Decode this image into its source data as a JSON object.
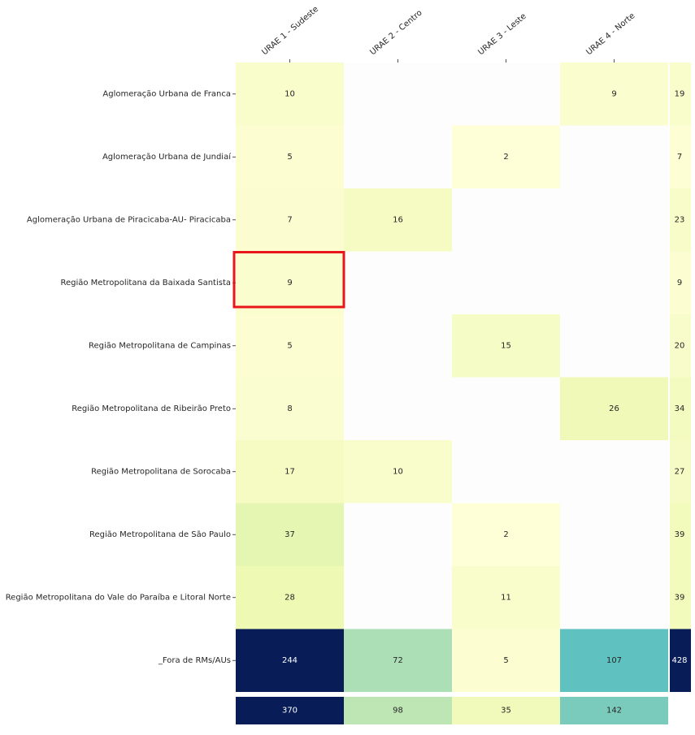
{
  "chart_data": {
    "type": "heatmap",
    "title": "",
    "xlabel": "",
    "ylabel": "",
    "colormap": "YlGnBu",
    "vmin": 0,
    "vmax": 244,
    "columns": [
      "URAE 1 - Sudeste",
      "URAE 2 - Centro",
      "URAE 3 - Leste",
      "URAE 4 - Norte"
    ],
    "rows": [
      "Aglomeração Urbana de Franca",
      "Aglomeração Urbana de Jundiaí",
      "Aglomeração Urbana de Piracicaba-AU- Piracicaba",
      "Região Metropolitana da Baixada Santista",
      "Região Metropolitana de Campinas",
      "Região Metropolitana de Ribeirão Preto",
      "Região Metropolitana de Sorocaba",
      "Região Metropolitana de São Paulo",
      "Região Metropolitana do Vale do Paraíba e Litoral Norte",
      "_Fora de RMs/AUs"
    ],
    "values": [
      [
        10,
        null,
        null,
        9
      ],
      [
        5,
        null,
        2,
        null
      ],
      [
        7,
        16,
        null,
        null
      ],
      [
        9,
        null,
        null,
        null
      ],
      [
        5,
        null,
        15,
        null
      ],
      [
        8,
        null,
        null,
        26
      ],
      [
        17,
        10,
        null,
        null
      ],
      [
        37,
        null,
        2,
        null
      ],
      [
        28,
        null,
        11,
        null
      ],
      [
        244,
        72,
        5,
        107
      ]
    ],
    "row_totals": [
      19,
      7,
      23,
      9,
      20,
      34,
      27,
      39,
      39,
      428
    ],
    "column_totals": [
      370,
      98,
      35,
      142
    ],
    "highlight": {
      "row": 3,
      "column": 0,
      "color": "#e8161b"
    }
  }
}
